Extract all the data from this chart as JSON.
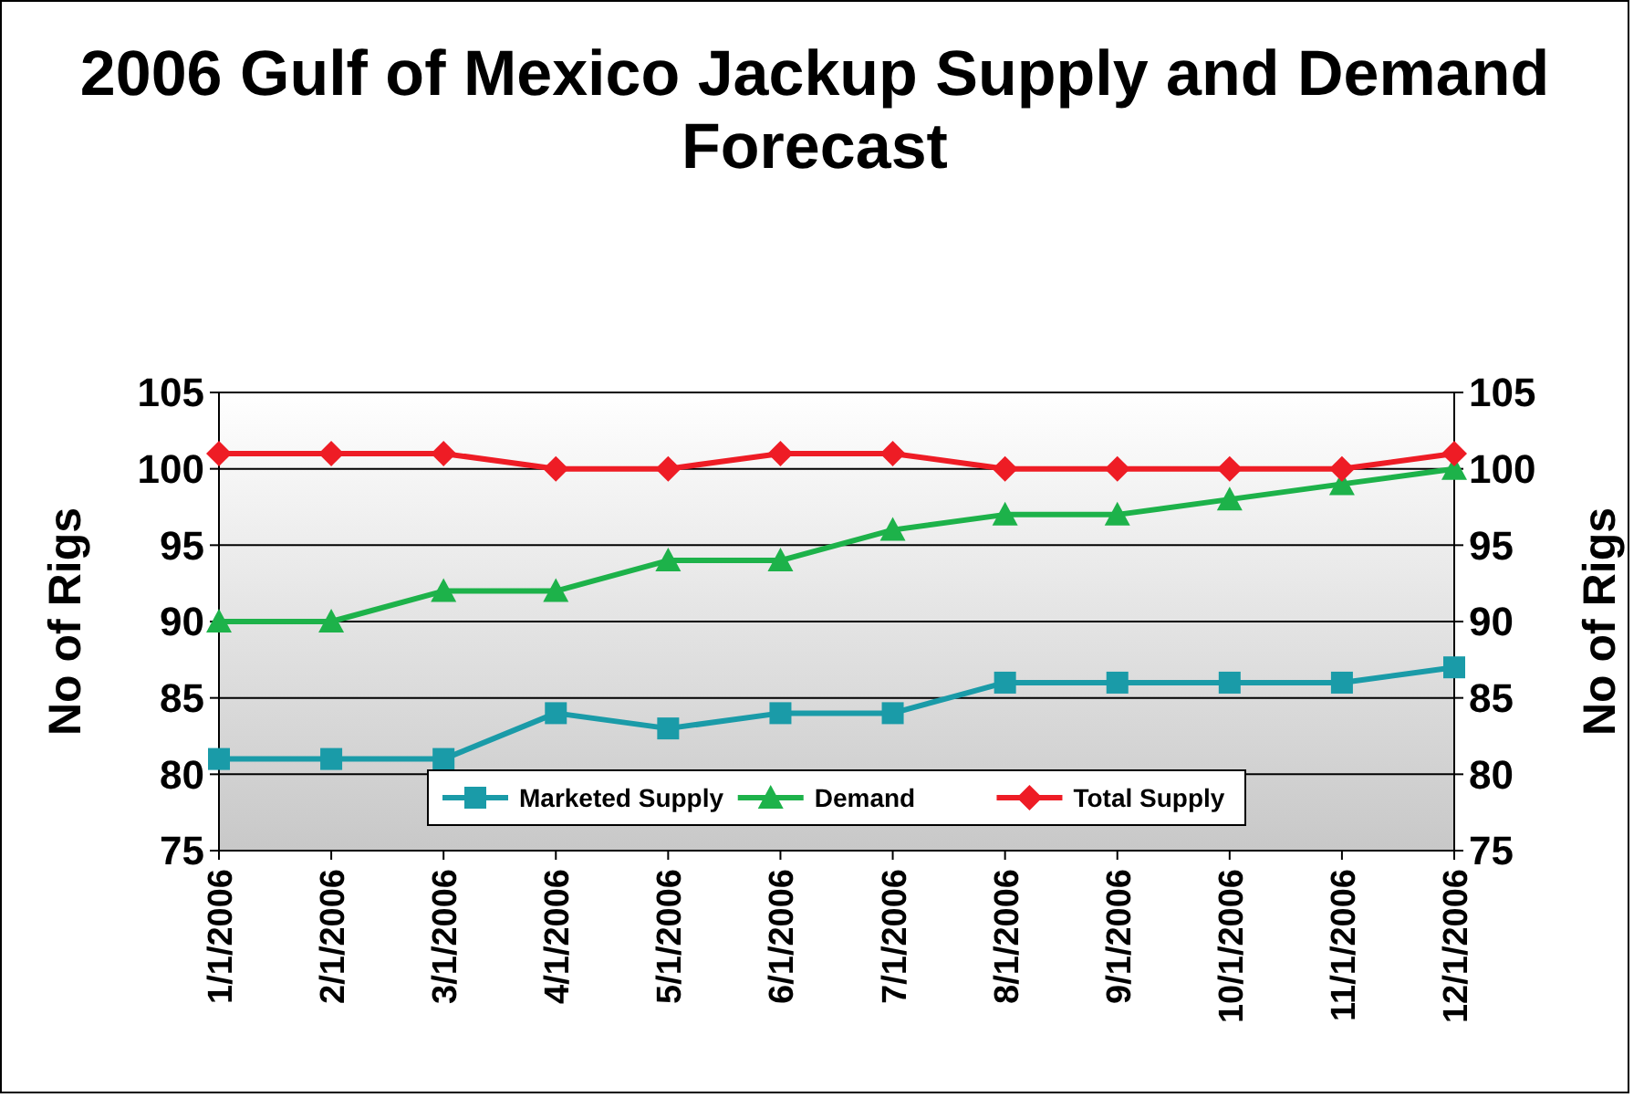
{
  "chart_data": {
    "type": "line",
    "title": "2006 Gulf of Mexico Jackup Supply and Demand Forecast",
    "ylabel": "No of Rigs",
    "y2label": "No of Rigs",
    "categories": [
      "1/1/2006",
      "2/1/2006",
      "3/1/2006",
      "4/1/2006",
      "5/1/2006",
      "6/1/2006",
      "7/1/2006",
      "8/1/2006",
      "9/1/2006",
      "10/1/2006",
      "11/1/2006",
      "12/1/2006"
    ],
    "series": [
      {
        "name": "Marketed Supply",
        "color": "#1a9ba8",
        "marker": "square",
        "values": [
          81,
          81,
          81,
          84,
          83,
          84,
          84,
          86,
          86,
          86,
          86,
          87
        ]
      },
      {
        "name": "Demand",
        "color": "#1db24a",
        "marker": "triangle",
        "values": [
          90,
          90,
          92,
          92,
          94,
          94,
          96,
          97,
          97,
          98,
          99,
          100
        ]
      },
      {
        "name": "Total Supply",
        "color": "#ee1c25",
        "marker": "diamond",
        "values": [
          101,
          101,
          101,
          100,
          100,
          101,
          101,
          100,
          100,
          100,
          100,
          101
        ]
      }
    ],
    "ylim": [
      75,
      105
    ],
    "yticks": [
      75,
      80,
      85,
      90,
      95,
      100,
      105
    ],
    "y2lim": [
      75,
      105
    ],
    "y2ticks": [
      75,
      80,
      85,
      90,
      95,
      100,
      105
    ],
    "grid": "y",
    "legend": "bottom"
  }
}
